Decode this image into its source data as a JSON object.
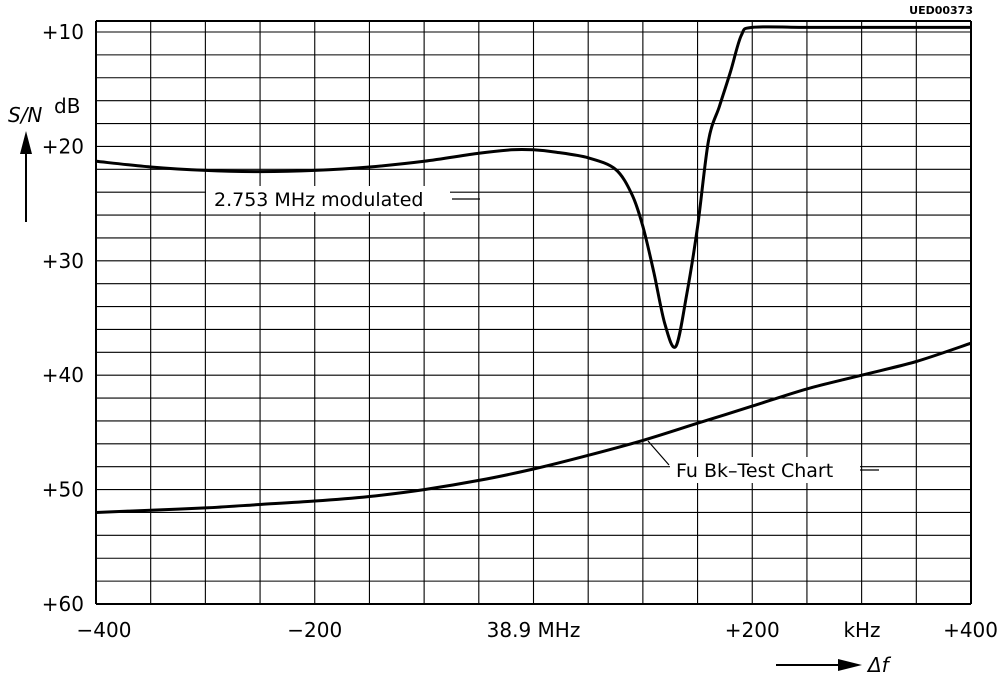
{
  "document_code": "UED00373",
  "chart_data": {
    "type": "line",
    "ylabel": "S/N",
    "yunit": "dB",
    "xlabel": "Δf",
    "xunit": "kHz",
    "xlim": [
      -400,
      400
    ],
    "ylim": [
      10,
      60
    ],
    "y_inverted": true,
    "grid": true,
    "x_ticks": [
      {
        "value": -400,
        "label": "−400"
      },
      {
        "value": -200,
        "label": "−200"
      },
      {
        "value": 0,
        "label": "38.9 MHz"
      },
      {
        "value": 200,
        "label": "+200"
      },
      {
        "value": 400,
        "label": "+400"
      }
    ],
    "y_ticks": [
      {
        "value": 10,
        "label": "+10"
      },
      {
        "value": 20,
        "label": "+20"
      },
      {
        "value": 30,
        "label": "+30"
      },
      {
        "value": 40,
        "label": "+40"
      },
      {
        "value": 50,
        "label": "+50"
      },
      {
        "value": 60,
        "label": "+60"
      }
    ],
    "series": [
      {
        "name": "2.753 MHz modulated",
        "x": [
          -400,
          -350,
          -300,
          -250,
          -200,
          -150,
          -100,
          -50,
          -20,
          0,
          20,
          50,
          75,
          90,
          100,
          110,
          120,
          130,
          140,
          150,
          160,
          170,
          180,
          190,
          200,
          250,
          300,
          350,
          400
        ],
        "y": [
          21.3,
          21.8,
          22.1,
          22.2,
          22.1,
          21.8,
          21.3,
          20.6,
          20.3,
          20.3,
          20.5,
          21.0,
          22.0,
          24.2,
          27.0,
          31.0,
          35.5,
          37.5,
          33.0,
          27.0,
          19.5,
          16.5,
          13.5,
          10.3,
          9.6,
          9.6,
          9.6,
          9.6,
          9.6
        ]
      },
      {
        "name": "Fu Bk–Test Chart",
        "x": [
          -400,
          -350,
          -300,
          -250,
          -200,
          -150,
          -100,
          -50,
          0,
          50,
          100,
          150,
          200,
          250,
          300,
          350,
          400
        ],
        "y": [
          52.0,
          51.8,
          51.6,
          51.3,
          51.0,
          50.6,
          50.0,
          49.2,
          48.2,
          47.0,
          45.7,
          44.2,
          42.7,
          41.2,
          40.0,
          38.8,
          37.2
        ]
      }
    ]
  }
}
